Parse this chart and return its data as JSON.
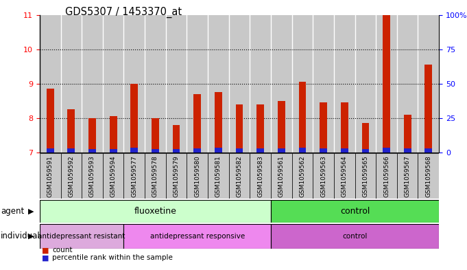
{
  "title": "GDS5307 / 1453370_at",
  "samples": [
    "GSM1059591",
    "GSM1059592",
    "GSM1059593",
    "GSM1059594",
    "GSM1059577",
    "GSM1059578",
    "GSM1059579",
    "GSM1059580",
    "GSM1059581",
    "GSM1059582",
    "GSM1059583",
    "GSM1059561",
    "GSM1059562",
    "GSM1059563",
    "GSM1059564",
    "GSM1059565",
    "GSM1059566",
    "GSM1059567",
    "GSM1059568"
  ],
  "red_values": [
    8.85,
    8.25,
    8.0,
    8.05,
    9.0,
    8.0,
    7.8,
    8.7,
    8.75,
    8.4,
    8.4,
    8.5,
    9.05,
    8.45,
    8.45,
    7.85,
    11.0,
    8.1,
    9.55
  ],
  "blue_values": [
    0.13,
    0.13,
    0.11,
    0.11,
    0.15,
    0.11,
    0.11,
    0.13,
    0.15,
    0.12,
    0.12,
    0.12,
    0.15,
    0.13,
    0.13,
    0.11,
    0.14,
    0.12,
    0.13
  ],
  "ymin": 7,
  "ymax": 11,
  "y_ticks": [
    7,
    8,
    9,
    10,
    11
  ],
  "y2_ticks": [
    0,
    25,
    50,
    75,
    100
  ],
  "y2_labels": [
    "0",
    "25",
    "50",
    "75",
    "100%"
  ],
  "bar_color": "#CC2200",
  "blue_color": "#2222CC",
  "col_bg_color": "#C8C8C8",
  "agent_groups": [
    {
      "label": "fluoxetine",
      "start": 0,
      "end": 10,
      "color": "#CCFFCC"
    },
    {
      "label": "control",
      "start": 11,
      "end": 18,
      "color": "#55DD55"
    }
  ],
  "individual_groups": [
    {
      "label": "antidepressant resistant",
      "start": 0,
      "end": 3,
      "color": "#DDAADD"
    },
    {
      "label": "antidepressant responsive",
      "start": 4,
      "end": 10,
      "color": "#EE88EE"
    },
    {
      "label": "control",
      "start": 11,
      "end": 18,
      "color": "#CC66CC"
    }
  ]
}
